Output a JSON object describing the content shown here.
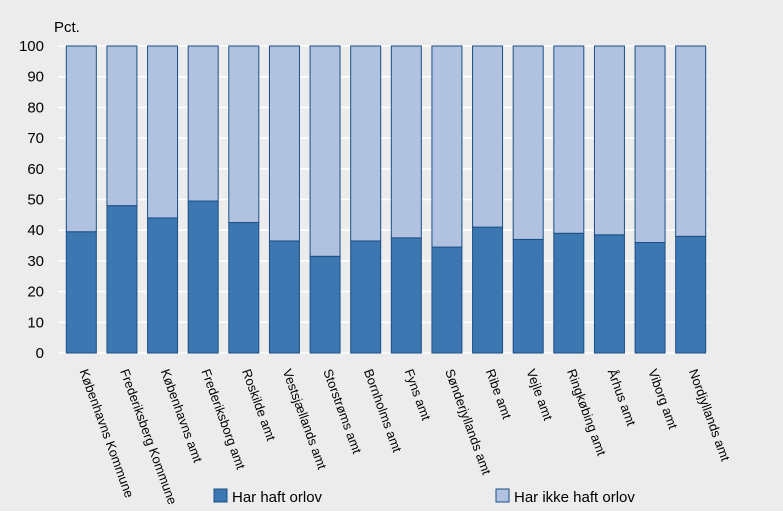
{
  "colors": {
    "background": "#ececec",
    "series_dark": "#3d77b2",
    "series_light": "#b0c2df",
    "bar_stroke": "#1a4f86",
    "grid": "#ffffff"
  },
  "chart_data": {
    "type": "bar",
    "stacked": true,
    "ylabel": "Pct.",
    "ylim": [
      0,
      100
    ],
    "yticks": [
      0,
      10,
      20,
      30,
      40,
      50,
      60,
      70,
      80,
      90,
      100
    ],
    "grid": true,
    "legend_position": "bottom",
    "categories": [
      "Københavns Kommune",
      "Frederiksberg Kommune",
      "Københavns amt",
      "Frederiksborg amt",
      "Roskilde amt",
      "Vestsjællands amt",
      "Storstrøms amt",
      "Bornholms amt",
      "Fyns amt",
      "Sønderjyllands amt",
      "Ribe amt",
      "Vejle amt",
      "Ringkøbing amt",
      "Århus amt",
      "Viborg amt",
      "Nordjyllands amt"
    ],
    "series": [
      {
        "name": "Har haft orlov",
        "color": "#3d77b2",
        "values": [
          39.5,
          48,
          44,
          49.5,
          42.5,
          36.5,
          31.5,
          36.5,
          37.5,
          34.5,
          41,
          37,
          39,
          38.5,
          36,
          38
        ]
      },
      {
        "name": "Har ikke haft orlov",
        "color": "#b0c2df",
        "values": [
          60.5,
          52,
          56,
          50.5,
          57.5,
          63.5,
          68.5,
          63.5,
          62.5,
          65.5,
          59,
          63,
          61,
          61.5,
          64,
          62
        ]
      }
    ]
  }
}
